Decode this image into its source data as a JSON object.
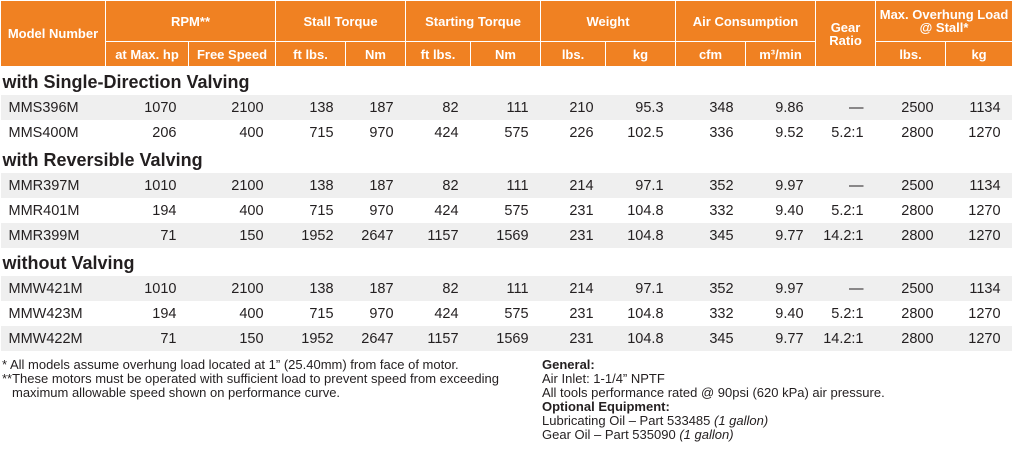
{
  "header": {
    "groups": [
      "Model Number",
      "RPM**",
      "Stall Torque",
      "Starting Torque",
      "Weight",
      "Air Consumption",
      "Gear Ratio",
      "Max. Overhung Load @ Stall*"
    ],
    "subheaders": [
      "at Max. hp",
      "Free Speed",
      "ft lbs.",
      "Nm",
      "ft lbs.",
      "Nm",
      "lbs.",
      "kg",
      "cfm",
      "m³/min",
      "lbs.",
      "kg"
    ]
  },
  "sections": [
    {
      "title": "with Single-Direction Valving",
      "rows": [
        [
          "MMS396M",
          "1070",
          "2100",
          "138",
          "187",
          "82",
          "111",
          "210",
          "95.3",
          "348",
          "9.86",
          "—",
          "2500",
          "1134"
        ],
        [
          "MMS400M",
          "206",
          "400",
          "715",
          "970",
          "424",
          "575",
          "226",
          "102.5",
          "336",
          "9.52",
          "5.2:1",
          "2800",
          "1270"
        ]
      ]
    },
    {
      "title": "with Reversible Valving",
      "rows": [
        [
          "MMR397M",
          "1010",
          "2100",
          "138",
          "187",
          "82",
          "111",
          "214",
          "97.1",
          "352",
          "9.97",
          "—",
          "2500",
          "1134"
        ],
        [
          "MMR401M",
          "194",
          "400",
          "715",
          "970",
          "424",
          "575",
          "231",
          "104.8",
          "332",
          "9.40",
          "5.2:1",
          "2800",
          "1270"
        ],
        [
          "MMR399M",
          "71",
          "150",
          "1952",
          "2647",
          "1157",
          "1569",
          "231",
          "104.8",
          "345",
          "9.77",
          "14.2:1",
          "2800",
          "1270"
        ]
      ]
    },
    {
      "title": "without Valving",
      "rows": [
        [
          "MMW421M",
          "1010",
          "2100",
          "138",
          "187",
          "82",
          "111",
          "214",
          "97.1",
          "352",
          "9.97",
          "—",
          "2500",
          "1134"
        ],
        [
          "MMW423M",
          "194",
          "400",
          "715",
          "970",
          "424",
          "575",
          "231",
          "104.8",
          "332",
          "9.40",
          "5.2:1",
          "2800",
          "1270"
        ],
        [
          "MMW422M",
          "71",
          "150",
          "1952",
          "2647",
          "1157",
          "1569",
          "231",
          "104.8",
          "345",
          "9.77",
          "14.2:1",
          "2800",
          "1270"
        ]
      ]
    }
  ],
  "footnotes": [
    "* All models assume overhung load located at 1” (25.40mm) from face of motor.",
    "**These motors must be operated with sufficient load to prevent speed from exceeding maximum allowable speed shown on performance curve."
  ],
  "notes": {
    "general_title": "General:",
    "air_inlet": "Air Inlet: 1-1/4” NPTF",
    "rating": "All tools performance rated @ 90psi (620 kPa) air pressure.",
    "optional_title": "Optional Equipment:",
    "oil": {
      "text": "Lubricating Oil – Part 533485",
      "qty": "(1 gallon)"
    },
    "gear_oil": {
      "text": "Gear Oil – Part 535090",
      "qty": "(1 gallon)"
    }
  }
}
